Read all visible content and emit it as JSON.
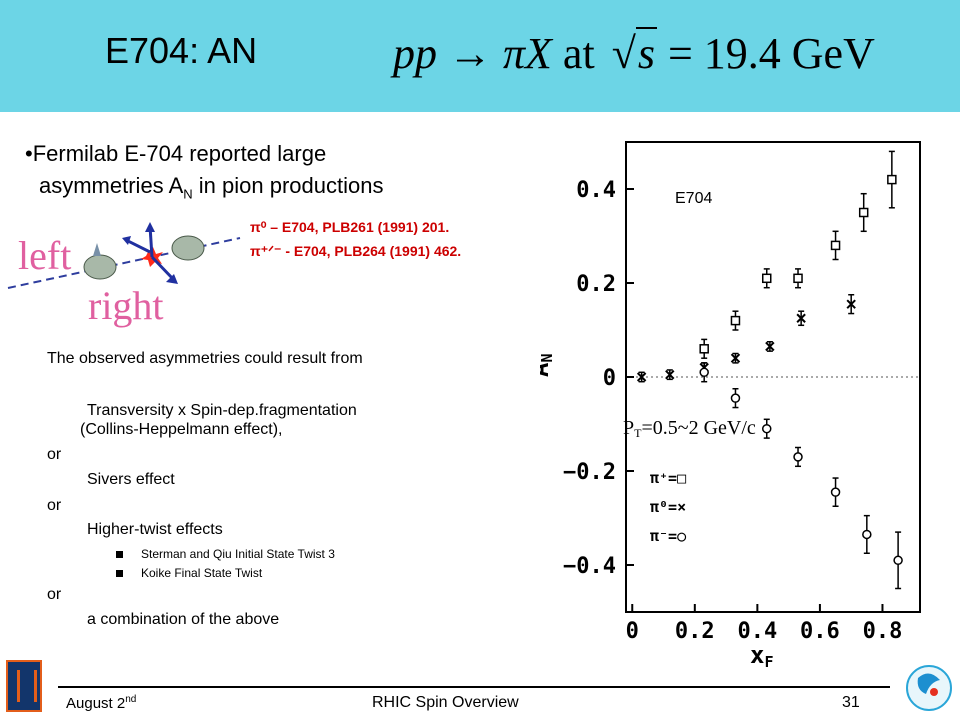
{
  "header": {
    "title": "E704: AN",
    "formula_lhs": "pp",
    "formula_arrow": "→",
    "formula_rhs": "πX",
    "formula_at": "at",
    "formula_sqrt": "s",
    "formula_val": "= 19.4 GeV"
  },
  "bullet": {
    "line1": "•Fermilab E-704 reported large",
    "line2a": "asymmetries A",
    "line2sub": "N",
    "line2b": " in pion productions"
  },
  "refs": {
    "ref1": "π⁰ – E704, PLB261 (1991) 201.",
    "ref2": "π⁺ᐟ⁻ - E704, PLB264 (1991) 462."
  },
  "diagram": {
    "left": "left",
    "right": "right"
  },
  "body": {
    "intro": "The observed asymmetries could result from",
    "item1a": "Transversity x Spin-dep.fragmentation",
    "item1b": "(Collins-Heppelmann effect),",
    "or1": "or",
    "item2": "Sivers effect",
    "or2": "or",
    "item3": "Higher-twist effects",
    "sub1": "Sterman and Qiu Initial State Twist 3",
    "sub2": "Koike Final State Twist",
    "or3": "or",
    "item4": "a combination of the above"
  },
  "footer": {
    "date": "August 2",
    "date_sup": "nd",
    "center": "RHIC Spin Overview",
    "page": "31"
  },
  "chart_data": {
    "type": "scatter",
    "title": "E704",
    "annotation": "P",
    "annotation_sub": "T",
    "annotation_rest": "=0.5~2 GeV/c",
    "xlabel": "x",
    "xlabel_sub": "F",
    "ylabel": "A",
    "ylabel_sub": "N",
    "xlim": [
      -0.02,
      0.92
    ],
    "ylim": [
      -0.5,
      0.5
    ],
    "x_ticks": [
      "0",
      "0.2",
      "0.4",
      "0.6",
      "0.8"
    ],
    "x_tick_values": [
      0,
      0.2,
      0.4,
      0.6,
      0.8
    ],
    "y_ticks": [
      "0.4",
      "0.2",
      "0",
      "−0.2",
      "−0.4"
    ],
    "y_tick_values": [
      0.4,
      0.2,
      0,
      -0.2,
      -0.4
    ],
    "legend": [
      "π⁺=□",
      "π⁰=×",
      "π⁻=○"
    ],
    "legend_position": "bottom-left",
    "series": [
      {
        "name": "π⁺",
        "marker": "square",
        "points": [
          {
            "x": 0.23,
            "y": 0.06,
            "err": 0.02
          },
          {
            "x": 0.33,
            "y": 0.12,
            "err": 0.02
          },
          {
            "x": 0.43,
            "y": 0.21,
            "err": 0.02
          },
          {
            "x": 0.53,
            "y": 0.21,
            "err": 0.02
          },
          {
            "x": 0.65,
            "y": 0.28,
            "err": 0.03
          },
          {
            "x": 0.74,
            "y": 0.35,
            "err": 0.04
          },
          {
            "x": 0.83,
            "y": 0.42,
            "err": 0.06
          }
        ]
      },
      {
        "name": "π⁰",
        "marker": "x",
        "points": [
          {
            "x": 0.03,
            "y": 0.0,
            "err": 0.01
          },
          {
            "x": 0.12,
            "y": 0.005,
            "err": 0.01
          },
          {
            "x": 0.23,
            "y": 0.02,
            "err": 0.01
          },
          {
            "x": 0.33,
            "y": 0.04,
            "err": 0.01
          },
          {
            "x": 0.44,
            "y": 0.065,
            "err": 0.01
          },
          {
            "x": 0.54,
            "y": 0.125,
            "err": 0.015
          },
          {
            "x": 0.7,
            "y": 0.155,
            "err": 0.02
          }
        ]
      },
      {
        "name": "π⁻",
        "marker": "circle",
        "points": [
          {
            "x": 0.23,
            "y": 0.01,
            "err": 0.02
          },
          {
            "x": 0.33,
            "y": -0.045,
            "err": 0.02
          },
          {
            "x": 0.43,
            "y": -0.11,
            "err": 0.02
          },
          {
            "x": 0.53,
            "y": -0.17,
            "err": 0.02
          },
          {
            "x": 0.65,
            "y": -0.245,
            "err": 0.03
          },
          {
            "x": 0.75,
            "y": -0.335,
            "err": 0.04
          },
          {
            "x": 0.85,
            "y": -0.39,
            "err": 0.06
          }
        ]
      }
    ]
  },
  "colors": {
    "header_bg": "#6cd5e6",
    "refs": "#cc0000",
    "pink": "#e060a0"
  }
}
